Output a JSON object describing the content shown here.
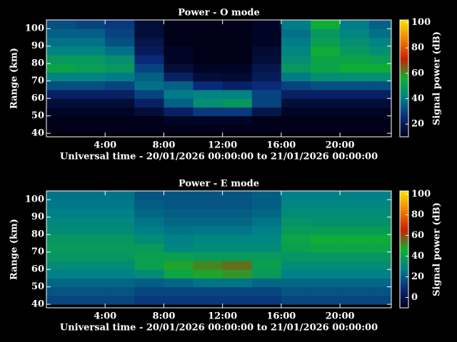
{
  "chart_data": [
    {
      "type": "heatmap",
      "title": "Power - O mode",
      "xlabel": "Universal time - 20/01/2026 00:00:00 to 21/01/2026 00:00:00",
      "ylabel": "Range (km)",
      "colorbar_label": "Signal power (dB)",
      "x": [
        0,
        2,
        4,
        6,
        8,
        10,
        12,
        14,
        16,
        18,
        20,
        22,
        24
      ],
      "y": [
        40,
        45,
        50,
        55,
        60,
        65,
        70,
        75,
        80,
        85,
        90,
        95,
        100,
        105
      ],
      "xlim": [
        0,
        23.5
      ],
      "ylim": [
        38,
        105
      ],
      "xticks": [
        {
          "value": 4,
          "label": "4:00"
        },
        {
          "value": 8,
          "label": "8:00"
        },
        {
          "value": 12,
          "label": "12:00"
        },
        {
          "value": 16,
          "label": "16:00"
        },
        {
          "value": 20,
          "label": "20:00"
        }
      ],
      "yticks": [
        40,
        50,
        60,
        70,
        80,
        90,
        100
      ],
      "clim": [
        10,
        102
      ],
      "cticks": [
        20,
        40,
        60,
        80,
        100
      ],
      "colormap": [
        "#000018",
        "#0a2a7a",
        "#00808a",
        "#10b030",
        "#c82000",
        "#f08000",
        "#ffe000"
      ],
      "z": [
        [
          10,
          10,
          10,
          10,
          10,
          10,
          10,
          10,
          10,
          10,
          10,
          10
        ],
        [
          10,
          10,
          10,
          10,
          12,
          12,
          12,
          10,
          10,
          10,
          10,
          10
        ],
        [
          12,
          12,
          12,
          15,
          22,
          28,
          28,
          18,
          12,
          12,
          12,
          12
        ],
        [
          15,
          15,
          15,
          22,
          35,
          45,
          48,
          30,
          15,
          15,
          15,
          15
        ],
        [
          22,
          22,
          22,
          30,
          40,
          42,
          42,
          30,
          22,
          22,
          22,
          22
        ],
        [
          32,
          32,
          30,
          38,
          35,
          25,
          22,
          25,
          30,
          32,
          32,
          32
        ],
        [
          42,
          42,
          40,
          35,
          22,
          15,
          14,
          20,
          40,
          45,
          45,
          45
        ],
        [
          52,
          50,
          48,
          30,
          15,
          12,
          12,
          18,
          48,
          52,
          55,
          55
        ],
        [
          48,
          48,
          45,
          25,
          12,
          10,
          10,
          15,
          45,
          52,
          52,
          50
        ],
        [
          42,
          42,
          38,
          20,
          12,
          10,
          10,
          14,
          42,
          55,
          48,
          45
        ],
        [
          38,
          38,
          32,
          18,
          10,
          10,
          10,
          12,
          40,
          50,
          45,
          42
        ],
        [
          35,
          35,
          30,
          15,
          10,
          10,
          10,
          12,
          38,
          48,
          42,
          38
        ],
        [
          32,
          30,
          28,
          15,
          10,
          10,
          10,
          12,
          40,
          55,
          40,
          35
        ]
      ]
    },
    {
      "type": "heatmap",
      "title": "Power - E mode",
      "xlabel": "Universal time - 20/01/2026 00:00:00 to 21/01/2026 00:00:00",
      "ylabel": "Range (km)",
      "colorbar_label": "Signal power (dB)",
      "x": [
        0,
        2,
        4,
        6,
        8,
        10,
        12,
        14,
        16,
        18,
        20,
        22,
        24
      ],
      "y": [
        40,
        45,
        50,
        55,
        60,
        65,
        70,
        75,
        80,
        85,
        90,
        95,
        100,
        105
      ],
      "xlim": [
        0,
        23.5
      ],
      "ylim": [
        38,
        105
      ],
      "xticks": [
        {
          "value": 4,
          "label": "4:00"
        },
        {
          "value": 8,
          "label": "8:00"
        },
        {
          "value": 12,
          "label": "12:00"
        },
        {
          "value": 16,
          "label": "16:00"
        },
        {
          "value": 20,
          "label": "20:00"
        }
      ],
      "yticks": [
        40,
        50,
        60,
        70,
        80,
        90,
        100
      ],
      "clim": [
        -10,
        103
      ],
      "cticks": [
        0,
        20,
        40,
        60,
        80,
        100
      ],
      "colormap": [
        "#000018",
        "#0a2a7a",
        "#00808a",
        "#10b030",
        "#c82000",
        "#f08000",
        "#ffe000"
      ],
      "z": [
        [
          15,
          15,
          15,
          12,
          12,
          12,
          12,
          12,
          15,
          15,
          15,
          15
        ],
        [
          18,
          18,
          18,
          15,
          15,
          15,
          15,
          15,
          18,
          18,
          18,
          18
        ],
        [
          22,
          22,
          22,
          20,
          22,
          25,
          25,
          22,
          22,
          22,
          22,
          22
        ],
        [
          28,
          28,
          28,
          32,
          42,
          48,
          50,
          38,
          28,
          28,
          28,
          28
        ],
        [
          32,
          32,
          32,
          40,
          48,
          52,
          55,
          40,
          32,
          32,
          32,
          32
        ],
        [
          36,
          36,
          36,
          40,
          40,
          38,
          38,
          38,
          36,
          36,
          36,
          36
        ],
        [
          38,
          38,
          38,
          38,
          30,
          32,
          32,
          32,
          40,
          42,
          42,
          42
        ],
        [
          36,
          36,
          36,
          32,
          28,
          30,
          30,
          30,
          42,
          45,
          45,
          45
        ],
        [
          32,
          32,
          32,
          28,
          25,
          26,
          26,
          28,
          38,
          38,
          38,
          38
        ],
        [
          30,
          30,
          30,
          25,
          22,
          22,
          22,
          25,
          35,
          34,
          34,
          34
        ],
        [
          28,
          28,
          28,
          22,
          20,
          20,
          20,
          22,
          32,
          32,
          32,
          32
        ],
        [
          26,
          26,
          26,
          20,
          18,
          18,
          18,
          20,
          30,
          30,
          30,
          30
        ],
        [
          25,
          25,
          25,
          18,
          18,
          18,
          18,
          20,
          28,
          28,
          28,
          28
        ]
      ]
    }
  ]
}
